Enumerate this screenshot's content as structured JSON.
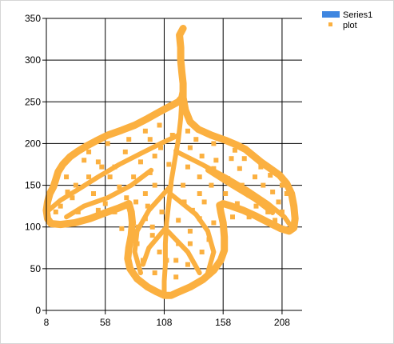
{
  "chart_data": {
    "type": "scatter",
    "xticks": [
      8,
      58,
      108,
      158,
      208
    ],
    "yticks": [
      0,
      50,
      100,
      150,
      200,
      250,
      300,
      350
    ],
    "xlim": [
      8,
      225
    ],
    "ylim": [
      0,
      350
    ],
    "grid": true,
    "legend_position": "top-right",
    "legend": [
      {
        "name": "Series1",
        "color": "#3e86e0",
        "marker": "bar"
      },
      {
        "name": "plot",
        "color": "#fbb040",
        "marker": "square"
      }
    ],
    "series": [
      {
        "name": "plot",
        "color": "#fbb040",
        "outline": [
          [
            124,
            338
          ],
          [
            121,
            330
          ],
          [
            122,
            315
          ],
          [
            122,
            300
          ],
          [
            123,
            285
          ],
          [
            124,
            272
          ],
          [
            124,
            262
          ],
          [
            123,
            255
          ],
          [
            120,
            250
          ],
          [
            112,
            244
          ],
          [
            104,
            238
          ],
          [
            94,
            230
          ],
          [
            83,
            222
          ],
          [
            72,
            216
          ],
          [
            60,
            210
          ],
          [
            50,
            203
          ],
          [
            42,
            197
          ],
          [
            35,
            191
          ],
          [
            28,
            184
          ],
          [
            22,
            175
          ],
          [
            18,
            166
          ],
          [
            16,
            157
          ],
          [
            14,
            148
          ],
          [
            11,
            140
          ],
          [
            9,
            130
          ],
          [
            8,
            120
          ],
          [
            9,
            110
          ],
          [
            12,
            104
          ],
          [
            20,
            103
          ],
          [
            32,
            105
          ],
          [
            45,
            110
          ],
          [
            58,
            117
          ],
          [
            70,
            123
          ],
          [
            75,
            126
          ],
          [
            78,
            128
          ],
          [
            80,
            118
          ],
          [
            81,
            105
          ],
          [
            80,
            90
          ],
          [
            78,
            75
          ],
          [
            77,
            62
          ],
          [
            79,
            50
          ],
          [
            85,
            38
          ],
          [
            94,
            28
          ],
          [
            102,
            22
          ],
          [
            108,
            18
          ],
          [
            114,
            18
          ],
          [
            120,
            22
          ],
          [
            130,
            28
          ],
          [
            141,
            37
          ],
          [
            150,
            48
          ],
          [
            156,
            60
          ],
          [
            159,
            72
          ],
          [
            159,
            88
          ],
          [
            158,
            105
          ],
          [
            156,
            118
          ],
          [
            155,
            126
          ],
          [
            158,
            128
          ],
          [
            165,
            125
          ],
          [
            175,
            120
          ],
          [
            186,
            113
          ],
          [
            197,
            105
          ],
          [
            207,
            98
          ],
          [
            214,
            95
          ],
          [
            218,
            99
          ],
          [
            219,
            110
          ],
          [
            218,
            125
          ],
          [
            216,
            140
          ],
          [
            212,
            152
          ],
          [
            206,
            162
          ],
          [
            198,
            170
          ],
          [
            190,
            178
          ],
          [
            183,
            186
          ],
          [
            177,
            193
          ],
          [
            170,
            198
          ],
          [
            160,
            204
          ],
          [
            148,
            210
          ],
          [
            137,
            217
          ],
          [
            130,
            226
          ],
          [
            126,
            240
          ],
          [
            124,
            255
          ],
          [
            124,
            262
          ]
        ],
        "veins": [
          [
            [
              123,
              255
            ],
            [
              122,
              230
            ],
            [
              120,
              205
            ],
            [
              117,
              180
            ],
            [
              114,
              155
            ],
            [
              112,
              130
            ],
            [
              110,
              105
            ],
            [
              109,
              80
            ],
            [
              109,
              55
            ],
            [
              108,
              35
            ],
            [
              108,
              20
            ]
          ],
          [
            [
              120,
              210
            ],
            [
              105,
              200
            ],
            [
              88,
              188
            ],
            [
              70,
              175
            ],
            [
              52,
              160
            ],
            [
              35,
              145
            ],
            [
              20,
              132
            ],
            [
              10,
              120
            ]
          ],
          [
            [
              119,
              190
            ],
            [
              140,
              175
            ],
            [
              160,
              160
            ],
            [
              178,
              145
            ],
            [
              196,
              128
            ],
            [
              210,
              112
            ],
            [
              216,
              100
            ]
          ],
          [
            [
              114,
              150
            ],
            [
              95,
              120
            ],
            [
              85,
              95
            ],
            [
              83,
              70
            ],
            [
              88,
              45
            ]
          ],
          [
            [
              113,
              140
            ],
            [
              135,
              115
            ],
            [
              145,
              95
            ],
            [
              150,
              70
            ],
            [
              145,
              45
            ]
          ],
          [
            [
              97,
              168
            ],
            [
              80,
              150
            ],
            [
              60,
              135
            ],
            [
              40,
              125
            ],
            [
              25,
              112
            ]
          ],
          [
            [
              145,
              168
            ],
            [
              165,
              150
            ],
            [
              185,
              133
            ],
            [
              200,
              117
            ]
          ],
          [
            [
              110,
              100
            ],
            [
              95,
              75
            ],
            [
              90,
              55
            ]
          ],
          [
            [
              111,
              95
            ],
            [
              128,
              70
            ],
            [
              138,
              45
            ]
          ]
        ],
        "scatter": [
          [
            40,
            180
          ],
          [
            55,
            172
          ],
          [
            62,
            160
          ],
          [
            75,
            190
          ],
          [
            88,
            178
          ],
          [
            96,
            165
          ],
          [
            70,
            148
          ],
          [
            48,
            140
          ],
          [
            33,
            150
          ],
          [
            25,
            160
          ],
          [
            58,
            128
          ],
          [
            66,
            118
          ],
          [
            92,
            140
          ],
          [
            100,
            185
          ],
          [
            130,
            195
          ],
          [
            140,
            185
          ],
          [
            150,
            170
          ],
          [
            165,
            182
          ],
          [
            172,
            170
          ],
          [
            185,
            160
          ],
          [
            192,
            150
          ],
          [
            200,
            142
          ],
          [
            205,
            130
          ],
          [
            180,
            138
          ],
          [
            170,
            128
          ],
          [
            160,
            140
          ],
          [
            148,
            150
          ],
          [
            138,
            160
          ],
          [
            128,
            172
          ],
          [
            112,
            175
          ],
          [
            100,
            150
          ],
          [
            92,
            110
          ],
          [
            98,
            90
          ],
          [
            104,
            70
          ],
          [
            120,
            80
          ],
          [
            130,
            95
          ],
          [
            138,
            110
          ],
          [
            142,
            130
          ],
          [
            125,
            130
          ],
          [
            90,
            60
          ],
          [
            100,
            45
          ],
          [
            118,
            40
          ],
          [
            128,
            55
          ],
          [
            140,
            70
          ],
          [
            85,
            80
          ],
          [
            86,
            100
          ],
          [
            60,
            200
          ],
          [
            78,
            205
          ],
          [
            92,
            215
          ],
          [
            104,
            222
          ],
          [
            115,
            210
          ],
          [
            135,
            205
          ],
          [
            150,
            200
          ],
          [
            168,
            192
          ],
          [
            176,
            182
          ],
          [
            190,
            172
          ],
          [
            198,
            162
          ],
          [
            208,
            150
          ],
          [
            212,
            140
          ],
          [
            208,
            118
          ],
          [
            196,
            118
          ],
          [
            186,
            125
          ],
          [
            174,
            150
          ],
          [
            162,
            158
          ],
          [
            152,
            180
          ],
          [
            128,
            215
          ],
          [
            105,
            195
          ],
          [
            82,
            160
          ],
          [
            66,
            172
          ],
          [
            44,
            160
          ],
          [
            30,
            135
          ],
          [
            20,
            125
          ],
          [
            35,
            118
          ],
          [
            52,
            120
          ],
          [
            76,
            135
          ],
          [
            94,
            125
          ],
          [
            106,
            118
          ],
          [
            120,
            108
          ],
          [
            132,
            120
          ],
          [
            150,
            105
          ],
          [
            146,
            85
          ],
          [
            130,
            80
          ],
          [
            118,
            60
          ],
          [
            98,
            100
          ],
          [
            84,
            130
          ],
          [
            72,
            98
          ],
          [
            110,
            60
          ],
          [
            124,
            150
          ],
          [
            138,
            140
          ],
          [
            156,
            122
          ],
          [
            166,
            112
          ],
          [
            180,
            112
          ],
          [
            190,
            110
          ],
          [
            202,
            108
          ],
          [
            26,
            142
          ],
          [
            16,
            118
          ],
          [
            44,
            190
          ],
          [
            52,
            178
          ],
          [
            118,
            190
          ],
          [
            96,
            205
          ]
        ]
      }
    ]
  }
}
